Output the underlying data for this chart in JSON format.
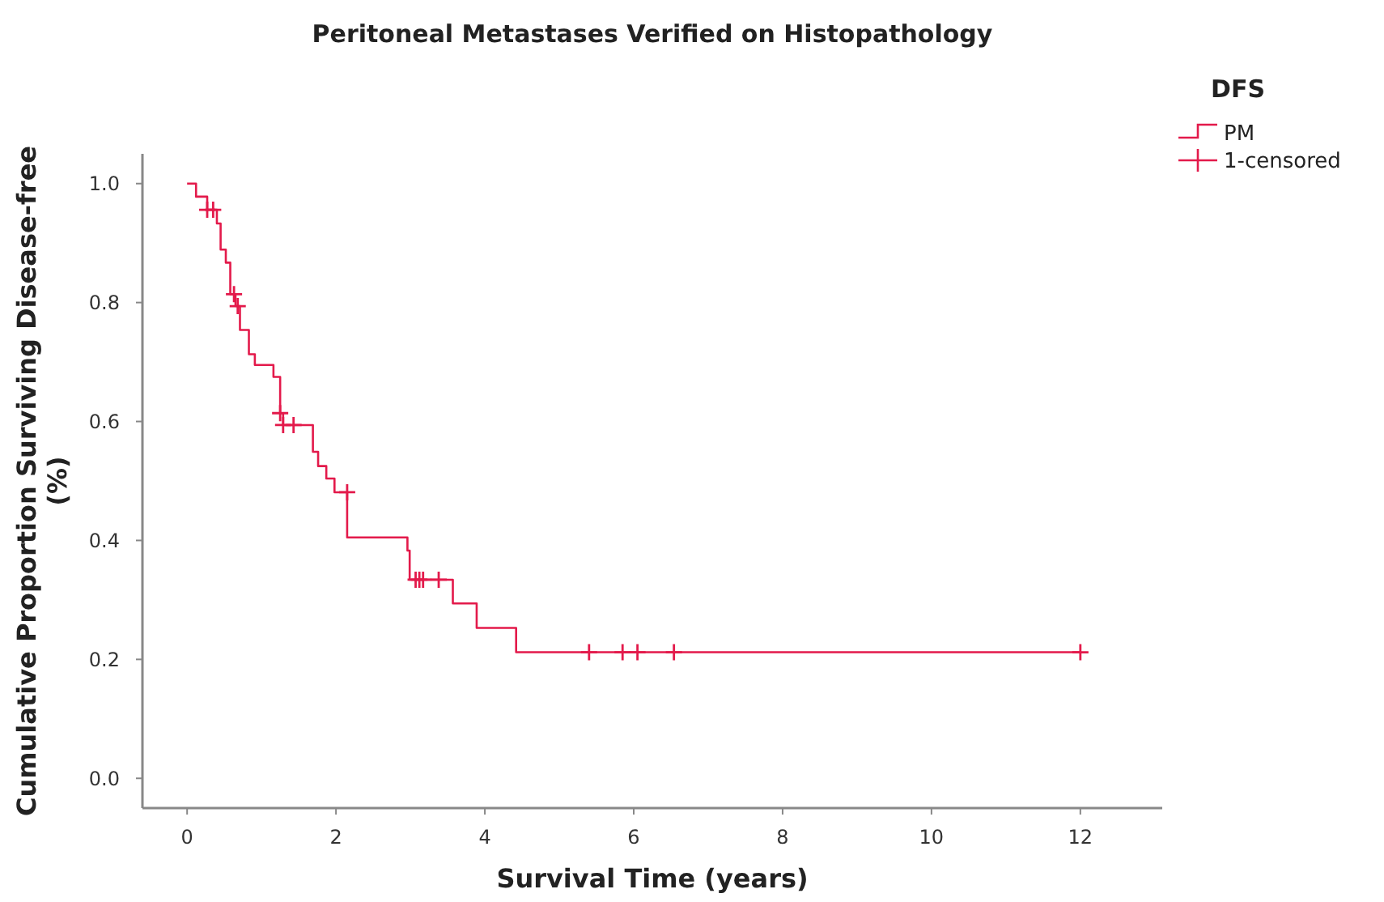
{
  "chart_data": {
    "type": "step",
    "title": "Peritoneal Metastases Verified on Histopathology",
    "xlabel": "Survival Time (years)",
    "ylabel": "Cumulative Proportion Surviving Disease-free\n(%)",
    "legend_title": "DFS",
    "legend": "right",
    "xlim": [
      -0.6,
      13.1
    ],
    "xticks": [
      0,
      2,
      4,
      6,
      8,
      10,
      12
    ],
    "ylim": [
      -0.05,
      1.05
    ],
    "yticks": [
      {
        "value": 0,
        "label": "0.0"
      },
      {
        "value": 0.2,
        "label": "0.2"
      },
      {
        "value": 0.4,
        "label": "0.4"
      },
      {
        "value": 0.6,
        "label": "0.6"
      },
      {
        "value": 0.8,
        "label": "0.8"
      },
      {
        "value": 1,
        "label": "1.0"
      }
    ],
    "grid": false,
    "series": [
      {
        "name": "PM",
        "color": "#e31a4b",
        "marker": "none",
        "x": [
          0,
          0.12,
          0.27,
          0.4,
          0.45,
          0.52,
          0.58,
          0.65,
          0.71,
          0.83,
          0.91,
          1.16,
          1.25,
          1.29,
          1.69,
          1.76,
          1.87,
          1.98,
          2.15,
          2.96,
          2.99,
          3.57,
          3.89,
          4.42,
          12.0
        ],
        "values": [
          1.0,
          0.978,
          0.956,
          0.933,
          0.889,
          0.867,
          0.814,
          0.794,
          0.754,
          0.713,
          0.695,
          0.675,
          0.614,
          0.594,
          0.549,
          0.525,
          0.504,
          0.481,
          0.405,
          0.383,
          0.334,
          0.294,
          0.253,
          0.212,
          0.212
        ]
      },
      {
        "name": "1-censored",
        "type": "scatter",
        "color": "#e31a4b",
        "marker": "cross",
        "x": [
          0.27,
          0.35,
          0.63,
          0.68,
          1.25,
          1.29,
          1.43,
          2.15,
          3.07,
          3.12,
          3.17,
          3.38,
          5.4,
          5.85,
          6.05,
          6.54,
          12.0
        ],
        "values": [
          0.956,
          0.956,
          0.814,
          0.794,
          0.614,
          0.594,
          0.594,
          0.481,
          0.334,
          0.334,
          0.334,
          0.334,
          0.212,
          0.212,
          0.212,
          0.212,
          0.212
        ]
      }
    ]
  }
}
